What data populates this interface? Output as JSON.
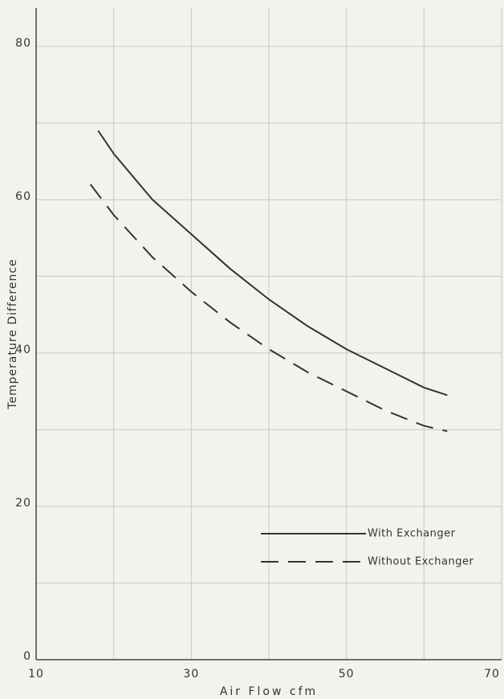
{
  "chart_data": {
    "type": "line",
    "x_label": "Air Flow   cfm",
    "y_label": "Temperature   Difference",
    "xlim": [
      10,
      70
    ],
    "ylim": [
      0,
      85
    ],
    "xticks": [
      10,
      30,
      50,
      70
    ],
    "yticks": [
      0,
      20,
      40,
      60,
      80
    ],
    "xminor": [
      20,
      40,
      60
    ],
    "yminor": [
      10,
      30,
      50,
      70
    ],
    "grid": true,
    "legend": "lower right",
    "series": [
      {
        "name": "With Exchanger",
        "color": "#333333",
        "dash": "solid",
        "x": [
          18,
          20,
          25,
          30,
          35,
          40,
          45,
          50,
          55,
          60,
          63
        ],
        "values": [
          69,
          66,
          60,
          55.5,
          51,
          47,
          43.5,
          40.5,
          38,
          35.5,
          34.5
        ]
      },
      {
        "name": "Without Exchanger",
        "color": "#333333",
        "dash": "dashed",
        "x": [
          17,
          20,
          25,
          30,
          35,
          40,
          45,
          50,
          55,
          60,
          63
        ],
        "values": [
          62,
          58,
          52.5,
          48,
          44,
          40.5,
          37.5,
          35,
          32.5,
          30.5,
          29.8
        ]
      }
    ]
  }
}
